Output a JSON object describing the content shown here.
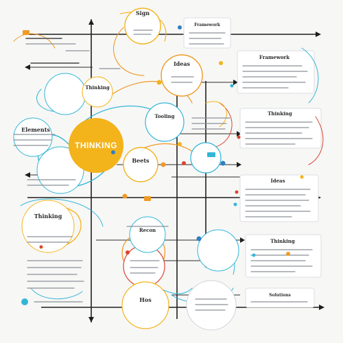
{
  "center": {
    "label": "THINKING"
  },
  "labels": {
    "top_node": "Sign",
    "bubble_top_left": "Thinking",
    "bubble_upper_mid": "Ideas",
    "left_cluster": "Elements",
    "mid_node": "Beets",
    "right_node": "Tooling",
    "left_lower": "Thinking",
    "mid_lower": "Recon",
    "bottom_node": "Hos",
    "panel_1": "Framework",
    "panel_2": "Thinking",
    "panel_3": "Ideas",
    "panel_4": "Thinking",
    "panel_5": "Solutions",
    "panel_6": "Framework"
  },
  "colors": {
    "accent": "#f3b31a",
    "cyan": "#33b6d6",
    "orange": "#f09a24",
    "blue": "#2f7fc4",
    "red": "#d9452f",
    "axis": "#1e1e1e"
  }
}
